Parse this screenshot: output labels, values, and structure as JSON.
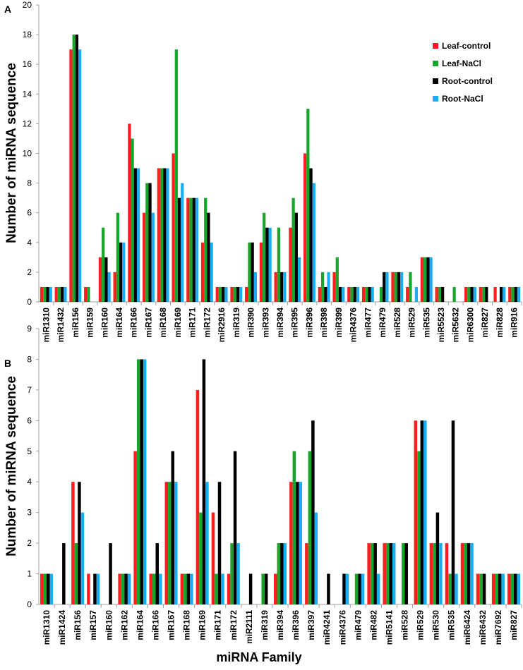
{
  "colors": {
    "series": [
      "#ff1e1e",
      "#17a52a",
      "#000000",
      "#19aef0"
    ],
    "axis": "#a0a0a0"
  },
  "chart_data": [
    {
      "type": "bar",
      "panel_label": "A",
      "ylabel": "Number of miRNA sequence",
      "xlabel": "",
      "ylim": [
        0,
        20
      ],
      "yticks": [
        0,
        2,
        4,
        6,
        8,
        10,
        12,
        14,
        16,
        18,
        20
      ],
      "legend": "top-right",
      "categories": [
        "miR1310",
        "miR1432",
        "miR156",
        "miR159",
        "miR160",
        "miR164",
        "miR166",
        "miR167",
        "miR168",
        "miR169",
        "miR171",
        "miR172",
        "miR2916",
        "miR319",
        "miR390",
        "miR393",
        "miR394",
        "miR395",
        "miR396",
        "miR398",
        "miR399",
        "miR4376",
        "miR477",
        "miR479",
        "miR528",
        "miR529",
        "miR535",
        "miR5523",
        "miR5632",
        "miR6300",
        "miR827",
        "miR828",
        "miR916"
      ],
      "series": [
        {
          "name": "Leaf-control",
          "values": [
            1,
            1,
            17,
            1,
            3,
            2,
            12,
            6,
            9,
            10,
            7,
            4,
            1,
            1,
            1,
            4,
            2,
            5,
            10,
            1,
            2,
            1,
            1,
            0,
            2,
            1,
            3,
            1,
            0,
            1,
            1,
            1,
            1
          ]
        },
        {
          "name": "Leaf-NaCl",
          "values": [
            1,
            1,
            18,
            1,
            5,
            6,
            11,
            8,
            9,
            17,
            7,
            7,
            1,
            1,
            4,
            6,
            5,
            7,
            13,
            2,
            3,
            1,
            1,
            1,
            2,
            2,
            3,
            1,
            1,
            1,
            1,
            0,
            1
          ]
        },
        {
          "name": "Root-control",
          "values": [
            1,
            1,
            18,
            0,
            3,
            4,
            9,
            8,
            9,
            7,
            7,
            6,
            1,
            1,
            4,
            5,
            2,
            6,
            9,
            1,
            1,
            1,
            1,
            2,
            2,
            0,
            3,
            1,
            0,
            1,
            1,
            1,
            1
          ]
        },
        {
          "name": "Root-NaCl",
          "values": [
            1,
            1,
            17,
            0,
            2,
            4,
            9,
            6,
            9,
            8,
            7,
            4,
            1,
            1,
            2,
            5,
            2,
            3,
            8,
            2,
            1,
            1,
            1,
            2,
            2,
            1,
            3,
            0,
            0,
            1,
            0,
            1,
            1
          ]
        }
      ]
    },
    {
      "type": "bar",
      "panel_label": "B",
      "ylabel": "Number of miRNA sequence",
      "xlabel": "miRNA Family",
      "ylim": [
        0,
        9
      ],
      "yticks": [
        0,
        1,
        2,
        3,
        4,
        5,
        6,
        7,
        8,
        9
      ],
      "categories": [
        "miR1310",
        "miR1424",
        "miR156",
        "miR157",
        "miR160",
        "miR162",
        "miR164",
        "miR166",
        "miR167",
        "miR168",
        "miR169",
        "miR171",
        "miR172",
        "miR2111",
        "miR319",
        "miR394",
        "miR396",
        "miR397",
        "miR4241",
        "miR4376",
        "miR479",
        "miR482",
        "miR5141",
        "miR528",
        "miR529",
        "miR530",
        "miR535",
        "miR6424",
        "miR6432",
        "miR7692",
        "miR827"
      ],
      "series": [
        {
          "name": "Leaf-control",
          "values": [
            1,
            0,
            4,
            1,
            0,
            1,
            5,
            1,
            4,
            1,
            7,
            3,
            1,
            0,
            0,
            1,
            4,
            2,
            0,
            0,
            0,
            2,
            2,
            0,
            6,
            2,
            2,
            2,
            1,
            1,
            1
          ]
        },
        {
          "name": "Leaf-NaCl",
          "values": [
            1,
            0,
            2,
            0,
            0,
            1,
            8,
            1,
            4,
            1,
            3,
            1,
            2,
            0,
            1,
            2,
            5,
            5,
            0,
            0,
            1,
            2,
            2,
            2,
            5,
            2,
            1,
            2,
            1,
            1,
            1
          ]
        },
        {
          "name": "Root-control",
          "values": [
            1,
            2,
            4,
            1,
            2,
            1,
            8,
            2,
            5,
            1,
            8,
            4,
            5,
            1,
            1,
            2,
            4,
            6,
            1,
            1,
            1,
            2,
            2,
            2,
            6,
            3,
            6,
            2,
            1,
            1,
            1
          ]
        },
        {
          "name": "Root-NaCl",
          "values": [
            1,
            0,
            3,
            1,
            0,
            1,
            8,
            1,
            4,
            1,
            4,
            1,
            2,
            0,
            0,
            2,
            4,
            3,
            0,
            1,
            1,
            1,
            2,
            0,
            6,
            2,
            1,
            2,
            0,
            1,
            1
          ]
        }
      ]
    }
  ]
}
